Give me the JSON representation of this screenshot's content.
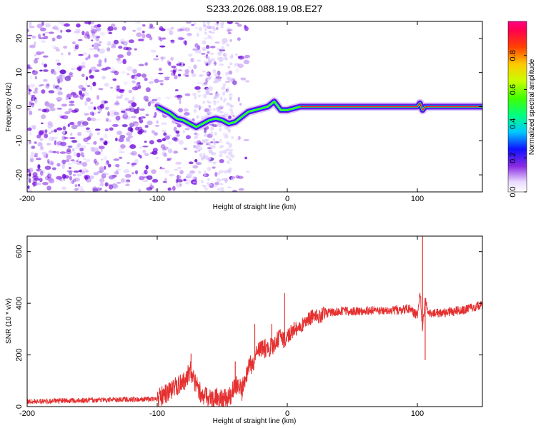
{
  "page": {
    "title": "S233.2026.088.19.08.E27"
  },
  "chart_data": [
    {
      "type": "heatmap",
      "title": "S233.2026.088.19.08.E27",
      "xlabel": "Height of straight line (km)",
      "ylabel": "Frequency (Hz)",
      "xlim": [
        -200,
        150
      ],
      "ylim": [
        -25,
        25
      ],
      "xticks": [
        -200,
        -100,
        0,
        100
      ],
      "yticks": [
        -20,
        -10,
        0,
        10,
        20
      ],
      "xtick_labels": [
        "-200",
        "-100",
        "0",
        "100"
      ],
      "ytick_labels": [
        "-20",
        "-10",
        "0",
        "10",
        "20"
      ],
      "colorbar": {
        "label": "Normalized spectral amplitude",
        "range": [
          0,
          1
        ],
        "ticks": [
          0.0,
          0.2,
          0.4,
          0.6,
          0.8
        ],
        "tick_labels": [
          "0.0",
          "0.2",
          "0.4",
          "0.6",
          "0.8"
        ]
      },
      "ridge": [
        {
          "x": -100,
          "y": 0
        },
        {
          "x": -95,
          "y": -1
        },
        {
          "x": -90,
          "y": -2
        },
        {
          "x": -85,
          "y": -3.5
        },
        {
          "x": -80,
          "y": -4
        },
        {
          "x": -75,
          "y": -5
        },
        {
          "x": -70,
          "y": -6
        },
        {
          "x": -65,
          "y": -5
        },
        {
          "x": -60,
          "y": -4
        },
        {
          "x": -55,
          "y": -3.5
        },
        {
          "x": -50,
          "y": -4
        },
        {
          "x": -45,
          "y": -5
        },
        {
          "x": -40,
          "y": -4.5
        },
        {
          "x": -35,
          "y": -3
        },
        {
          "x": -30,
          "y": -1.5
        },
        {
          "x": -25,
          "y": -1
        },
        {
          "x": -20,
          "y": -0.5
        },
        {
          "x": -15,
          "y": 0
        },
        {
          "x": -10,
          "y": 1.5
        },
        {
          "x": -5,
          "y": -1
        },
        {
          "x": 0,
          "y": -1
        },
        {
          "x": 5,
          "y": -0.5
        },
        {
          "x": 10,
          "y": 0
        },
        {
          "x": 100,
          "y": 0
        },
        {
          "x": 102,
          "y": 1
        },
        {
          "x": 104,
          "y": -1
        },
        {
          "x": 106,
          "y": 0
        },
        {
          "x": 150,
          "y": 0
        }
      ]
    },
    {
      "type": "line",
      "xlabel": "Height of straight line (km)",
      "ylabel": "SNR (10 * v/v)",
      "xlim": [
        -200,
        150
      ],
      "ylim": [
        0,
        660
      ],
      "xticks": [
        -200,
        -100,
        0,
        100
      ],
      "yticks": [
        0,
        200,
        400,
        600
      ],
      "xtick_labels": [
        "-200",
        "-100",
        "0",
        "100"
      ],
      "ytick_labels": [
        "0",
        "200",
        "400",
        "600"
      ],
      "series": [
        {
          "name": "SNR",
          "color": "#e53030",
          "x": [
            -200,
            -180,
            -160,
            -140,
            -120,
            -100,
            -90,
            -80,
            -74,
            -70,
            -65,
            -60,
            -55,
            -50,
            -45,
            -40,
            -35,
            -30,
            -25,
            -20,
            -15,
            -10,
            -5,
            0,
            5,
            10,
            15,
            20,
            25,
            30,
            40,
            50,
            60,
            70,
            80,
            90,
            95,
            100,
            102,
            104,
            106,
            108,
            110,
            120,
            130,
            140,
            150
          ],
          "values": [
            20,
            22,
            24,
            26,
            28,
            30,
            60,
            95,
            140,
            80,
            40,
            30,
            35,
            30,
            30,
            90,
            60,
            150,
            180,
            230,
            220,
            250,
            260,
            270,
            300,
            310,
            330,
            350,
            350,
            360,
            370,
            370,
            372,
            372,
            372,
            375,
            380,
            350,
            450,
            300,
            420,
            360,
            360,
            365,
            370,
            380,
            395
          ]
        }
      ],
      "spikes": [
        {
          "x": -74,
          "value": 205
        },
        {
          "x": -40,
          "value": 175
        },
        {
          "x": -25,
          "value": 320
        },
        {
          "x": -12,
          "value": 320
        },
        {
          "x": -2,
          "value": 440
        },
        {
          "x": 104,
          "value": 660
        },
        {
          "x": 106,
          "value": 180
        }
      ]
    }
  ]
}
